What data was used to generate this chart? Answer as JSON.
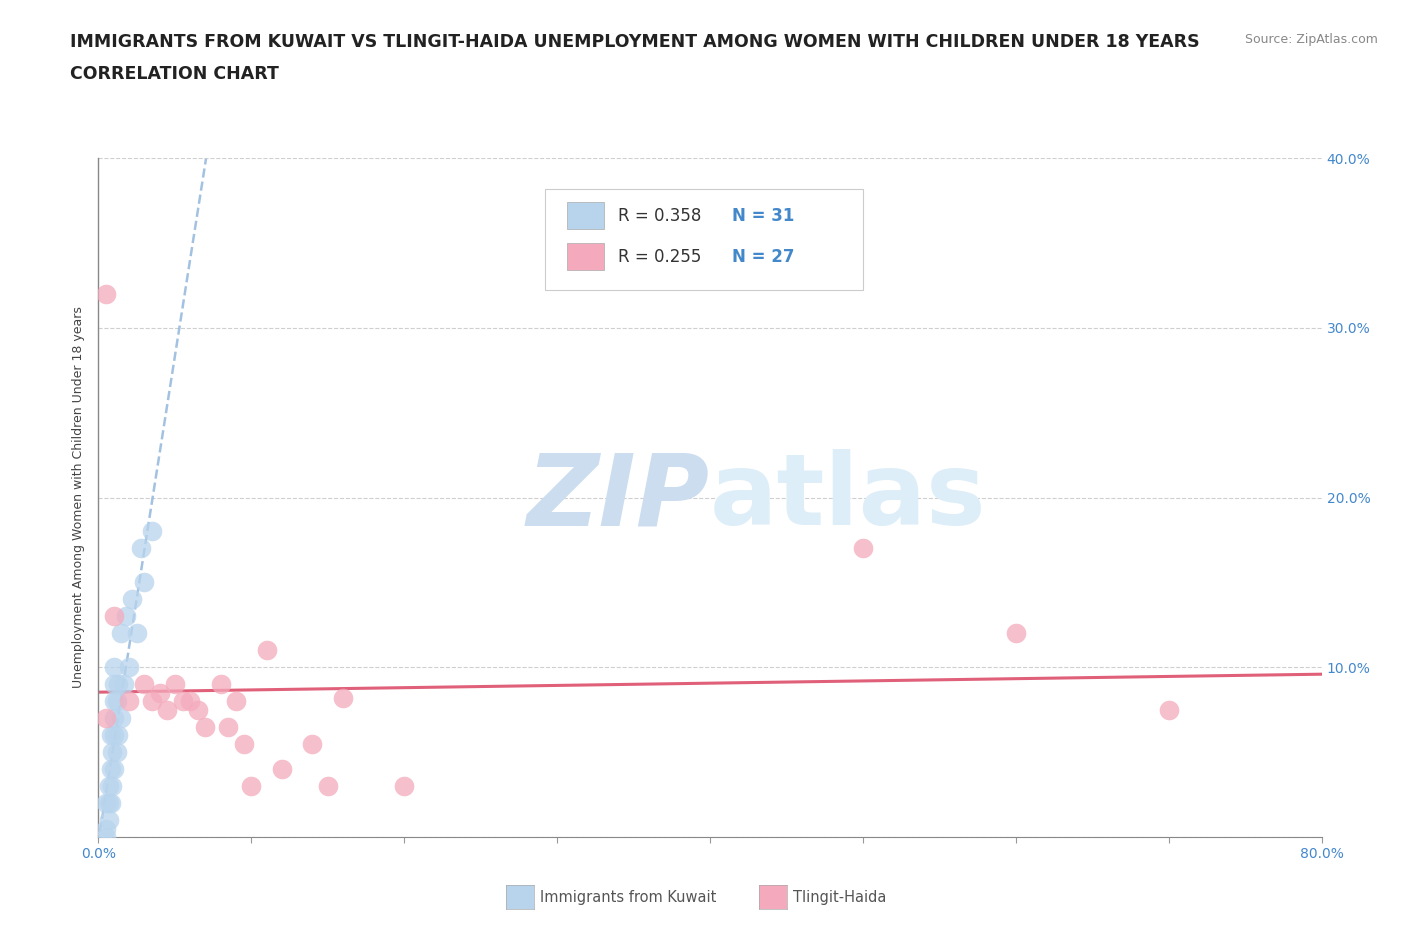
{
  "title_line1": "IMMIGRANTS FROM KUWAIT VS TLINGIT-HAIDA UNEMPLOYMENT AMONG WOMEN WITH CHILDREN UNDER 18 YEARS",
  "title_line2": "CORRELATION CHART",
  "source_text": "Source: ZipAtlas.com",
  "ylabel": "Unemployment Among Women with Children Under 18 years",
  "xlim": [
    0.0,
    0.8
  ],
  "ylim": [
    0.0,
    0.4
  ],
  "xticks": [
    0.0,
    0.1,
    0.2,
    0.3,
    0.4,
    0.5,
    0.6,
    0.7,
    0.8
  ],
  "yticks": [
    0.0,
    0.1,
    0.2,
    0.3,
    0.4
  ],
  "xtick_labels": [
    "0.0%",
    "",
    "",
    "",
    "",
    "",
    "",
    "",
    "80.0%"
  ],
  "ytick_labels": [
    "",
    "10.0%",
    "20.0%",
    "30.0%",
    "40.0%"
  ],
  "right_ytick_labels": [
    "",
    "10.0%",
    "20.0%",
    "30.0%",
    "40.0%"
  ],
  "blue_scatter_x": [
    0.005,
    0.005,
    0.007,
    0.007,
    0.007,
    0.008,
    0.008,
    0.008,
    0.009,
    0.009,
    0.01,
    0.01,
    0.01,
    0.01,
    0.01,
    0.01,
    0.012,
    0.012,
    0.013,
    0.013,
    0.015,
    0.015,
    0.017,
    0.018,
    0.02,
    0.022,
    0.025,
    0.028,
    0.03,
    0.035,
    0.005
  ],
  "blue_scatter_y": [
    0.005,
    0.02,
    0.01,
    0.02,
    0.03,
    0.02,
    0.04,
    0.06,
    0.03,
    0.05,
    0.04,
    0.06,
    0.07,
    0.08,
    0.09,
    0.1,
    0.05,
    0.08,
    0.06,
    0.09,
    0.07,
    0.12,
    0.09,
    0.13,
    0.1,
    0.14,
    0.12,
    0.17,
    0.15,
    0.18,
    0.0
  ],
  "pink_scatter_x": [
    0.005,
    0.01,
    0.02,
    0.03,
    0.035,
    0.04,
    0.045,
    0.05,
    0.055,
    0.06,
    0.065,
    0.07,
    0.08,
    0.085,
    0.09,
    0.095,
    0.1,
    0.11,
    0.12,
    0.14,
    0.15,
    0.16,
    0.2,
    0.5,
    0.6,
    0.7,
    0.005
  ],
  "pink_scatter_y": [
    0.32,
    0.13,
    0.08,
    0.09,
    0.08,
    0.085,
    0.075,
    0.09,
    0.08,
    0.08,
    0.075,
    0.065,
    0.09,
    0.065,
    0.08,
    0.055,
    0.03,
    0.11,
    0.04,
    0.055,
    0.03,
    0.082,
    0.03,
    0.17,
    0.12,
    0.075,
    0.07
  ],
  "blue_color": "#b8d4ed",
  "pink_color": "#f4aabc",
  "blue_line_color": "#99bbdd",
  "pink_line_color": "#e0607a",
  "blue_R": 0.358,
  "blue_N": 31,
  "pink_R": 0.255,
  "pink_N": 27,
  "background_color": "#ffffff",
  "grid_color": "#bbbbbb",
  "title_fontsize": 12.5,
  "subtitle_fontsize": 12.5,
  "axis_label_fontsize": 9,
  "tick_fontsize": 10,
  "legend_fontsize": 12,
  "watermark_color": "#ccddf0",
  "watermark_fontsize": 72
}
